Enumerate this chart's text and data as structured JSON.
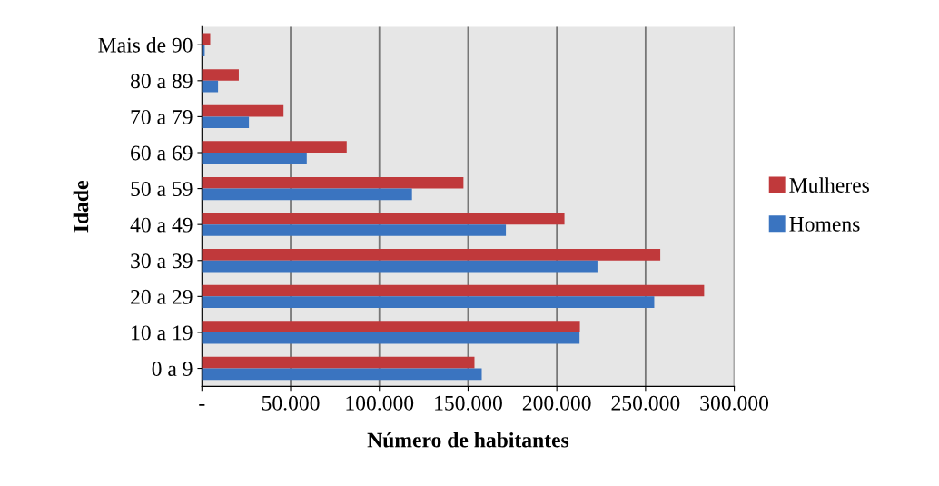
{
  "chart_data": {
    "type": "bar",
    "orientation": "horizontal",
    "xlabel": "Número de habitantes",
    "ylabel": "Idade",
    "categories": [
      "Mais de 90",
      "80 a 89",
      "70 a 79",
      "60 a 69",
      "50 a 59",
      "40 a 49",
      "30 a 39",
      "20 a 29",
      "10 a 19",
      "0 a 9"
    ],
    "series": [
      {
        "name": "Mulheres",
        "color": "#c0393b",
        "values": [
          4700,
          20800,
          46000,
          81600,
          147400,
          204300,
          258300,
          283000,
          213000,
          153600
        ]
      },
      {
        "name": "Homens",
        "color": "#3a74c0",
        "values": [
          1600,
          9100,
          26500,
          59100,
          118400,
          171300,
          222900,
          254900,
          212800,
          157700
        ]
      }
    ],
    "xlim": [
      0,
      300000
    ],
    "xticks": [
      {
        "value": 0,
        "label": "-"
      },
      {
        "value": 50000,
        "label": "50.000"
      },
      {
        "value": 100000,
        "label": "100.000"
      },
      {
        "value": 150000,
        "label": "150.000"
      },
      {
        "value": 200000,
        "label": "200.000"
      },
      {
        "value": 250000,
        "label": "250.000"
      },
      {
        "value": 300000,
        "label": "300.000"
      }
    ],
    "grid": "x",
    "legend": "right"
  }
}
